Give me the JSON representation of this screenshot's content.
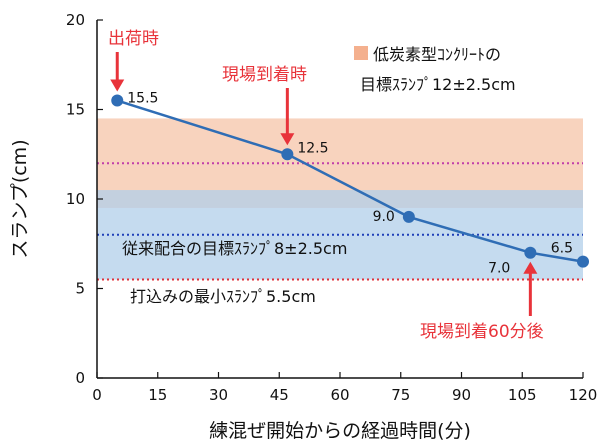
{
  "chart_data": {
    "type": "line",
    "xlabel": "練混ぜ開始からの経過時間(分)",
    "ylabel": "スランプ(cm)",
    "xlim": [
      0,
      120
    ],
    "ylim": [
      0,
      20
    ],
    "xticks": [
      0,
      15,
      30,
      45,
      60,
      75,
      90,
      105,
      120
    ],
    "yticks": [
      0,
      5,
      10,
      15,
      20
    ],
    "grid": false,
    "series": [
      {
        "color": "#2f6db5",
        "x": [
          5,
          47,
          77,
          107,
          120
        ],
        "y": [
          15.5,
          12.5,
          9.0,
          7.0,
          6.5
        ],
        "labels": [
          "15.5",
          "12.5",
          "9.0",
          "7.0",
          "6.5"
        ]
      }
    ],
    "bands": [
      {
        "name": "low_carbon",
        "from": 9.5,
        "to": 14.5,
        "color": "#f6c4a8",
        "target": 12,
        "target_color": "#c13fa9",
        "text": "低炭素型ｺﾝｸﾘｰﾄの",
        "text2": "目標ｽﾗﾝﾌﾟ12±2.5cm",
        "legend_marker_color": "#f4b08e"
      },
      {
        "name": "conventional",
        "from": 5.5,
        "to": 10.5,
        "color": "#b2cfe9",
        "target": 8,
        "target_color": "#2040b8",
        "text": "従来配合の目標ｽﾗﾝﾌﾟ8±2.5cm"
      }
    ],
    "min_line": {
      "y": 5.5,
      "color": "#e0303a",
      "text": "打込みの最小ｽﾗﾝﾌﾟ5.5cm"
    },
    "annotations": [
      {
        "text": "出荷時",
        "x": 5,
        "arrow_to": 15.5
      },
      {
        "text": "現場到着時",
        "x": 47,
        "arrow_to": 12.5
      },
      {
        "text": "現場到着60分後",
        "x": 107,
        "arrow_to": 7.0
      }
    ],
    "annotation_color": "#e8333a"
  }
}
